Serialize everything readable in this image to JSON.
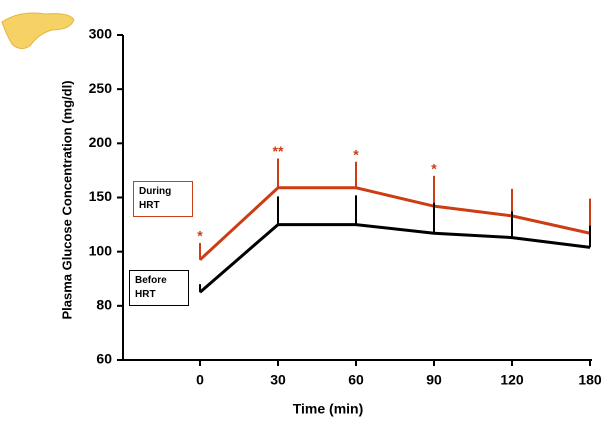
{
  "chart_data": {
    "type": "line",
    "y_label": "Plasma Glucose Concentration (mg/dl)",
    "x_label": "Time (min)",
    "categories": [
      "0",
      "30",
      "60",
      "90",
      "120",
      "180"
    ],
    "yticks": [
      60,
      80,
      100,
      150,
      200,
      250,
      300
    ],
    "ylim": [
      60,
      300
    ],
    "series": [
      {
        "name": "During HRT",
        "color": "#cc3d14",
        "values": [
          97,
          159,
          159,
          142,
          133,
          117
        ],
        "errors": [
          11,
          27,
          24,
          28,
          25,
          32
        ],
        "annotations": [
          "*",
          "**",
          "*",
          "*",
          null,
          null
        ]
      },
      {
        "name": "Before HRT",
        "color": "#000000",
        "values": [
          85,
          125,
          125,
          117,
          113,
          104
        ],
        "errors": [
          3,
          26,
          27,
          28,
          24,
          20
        ]
      }
    ]
  }
}
